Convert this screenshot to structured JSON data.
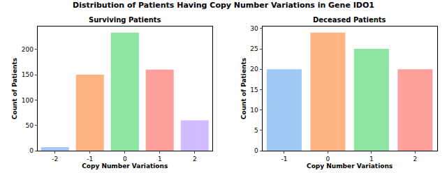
{
  "title": "Distribution of Patients Having Copy Number Variations in Gene IDO1",
  "chart_data": [
    {
      "type": "bar",
      "title": "Surviving Patients",
      "x_label": "Copy Number Variations",
      "y_label": "Count of Patients",
      "categories": [
        "-2",
        "-1",
        "0",
        "1",
        "2"
      ],
      "values": [
        7,
        150,
        233,
        160,
        60
      ],
      "colors": [
        "#a1c9f4",
        "#ffb482",
        "#8de5a1",
        "#ff9f9b",
        "#d0bbff"
      ],
      "ylim": [
        0,
        245
      ],
      "yticks": [
        0,
        50,
        100,
        150,
        200
      ],
      "grid": false
    },
    {
      "type": "bar",
      "title": "Deceased Patients",
      "x_label": "Copy Number Variations",
      "y_label": "Count of Patients",
      "categories": [
        "-1",
        "0",
        "1",
        "2"
      ],
      "values": [
        20,
        29,
        25,
        20
      ],
      "colors": [
        "#a1c9f4",
        "#ffb482",
        "#8de5a1",
        "#ff9f9b"
      ],
      "ylim": [
        0,
        30.5
      ],
      "yticks": [
        0,
        5,
        10,
        15,
        20,
        25,
        30
      ],
      "grid": false
    }
  ]
}
